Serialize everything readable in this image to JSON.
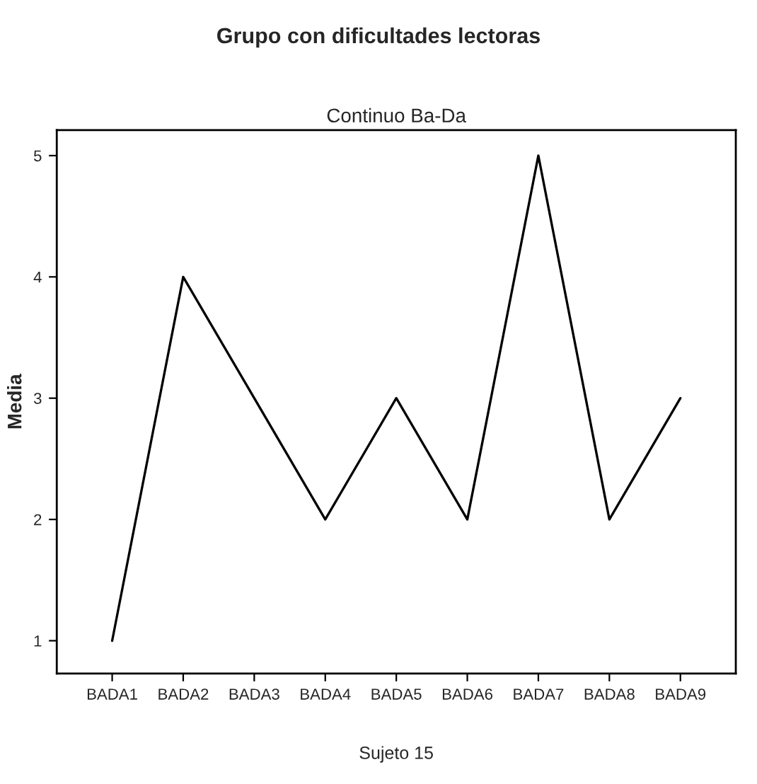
{
  "chart_data": {
    "type": "line",
    "title": "Grupo con dificultades lectoras",
    "subtitle": "Continuo Ba-Da",
    "xlabel": "Sujeto 15",
    "ylabel": "Media",
    "categories": [
      "BADA1",
      "BADA2",
      "BADA3",
      "BADA4",
      "BADA5",
      "BADA6",
      "BADA7",
      "BADA8",
      "BADA9"
    ],
    "values": [
      1,
      4,
      3,
      2,
      3,
      2,
      5,
      2,
      3
    ],
    "color": "#000000",
    "ylim": [
      0.73,
      5.21
    ],
    "yticks": [
      1,
      2,
      3,
      4,
      5
    ],
    "grid": false,
    "marker": "none",
    "line_style": "solid"
  }
}
